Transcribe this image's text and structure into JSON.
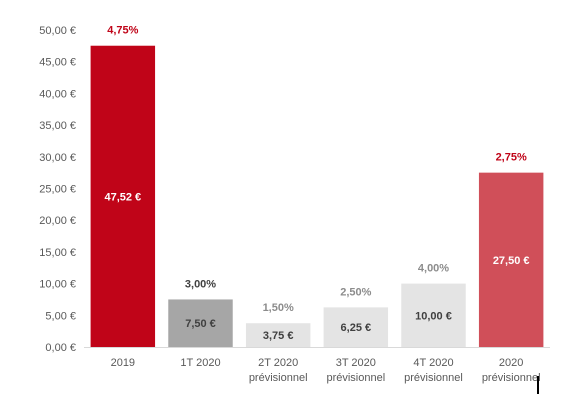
{
  "chart_data": {
    "type": "bar",
    "categories": [
      [
        "2019"
      ],
      [
        "1T 2020"
      ],
      [
        "2T 2020",
        "prévisionnel"
      ],
      [
        "3T 2020",
        "prévisionnel"
      ],
      [
        "4T 2020",
        "prévisionnel"
      ],
      [
        "2020",
        "prévisionnel"
      ]
    ],
    "values": [
      47.52,
      7.5,
      3.75,
      6.25,
      10.0,
      27.5
    ],
    "value_labels": [
      "47,52 €",
      "7,50 €",
      "3,75 €",
      "6,25 €",
      "10,00 €",
      "27,50 €"
    ],
    "percent_labels": [
      "4,75%",
      "3,00%",
      "1,50%",
      "2,50%",
      "4,00%",
      "2,75%"
    ],
    "bar_colors": [
      "#C00418",
      "#A6A6A6",
      "#E4E4E4",
      "#E4E4E4",
      "#E4E4E4",
      "#D04F59"
    ],
    "value_label_colors": [
      "#FFFFFF",
      "#404040",
      "#404040",
      "#404040",
      "#404040",
      "#FFFFFF"
    ],
    "percent_label_colors": [
      "#C00418",
      "#404040",
      "#8C8C8C",
      "#8C8C8C",
      "#8C8C8C",
      "#C00418"
    ],
    "y_ticks": [
      "0,00 €",
      "5,00 €",
      "10,00 €",
      "15,00 €",
      "20,00 €",
      "25,00 €",
      "30,00 €",
      "35,00 €",
      "40,00 €",
      "45,00 €",
      "50,00 €"
    ],
    "ylim": [
      0,
      50
    ],
    "y_step": 5,
    "grid": false,
    "title": "",
    "xlabel": "",
    "ylabel": ""
  }
}
